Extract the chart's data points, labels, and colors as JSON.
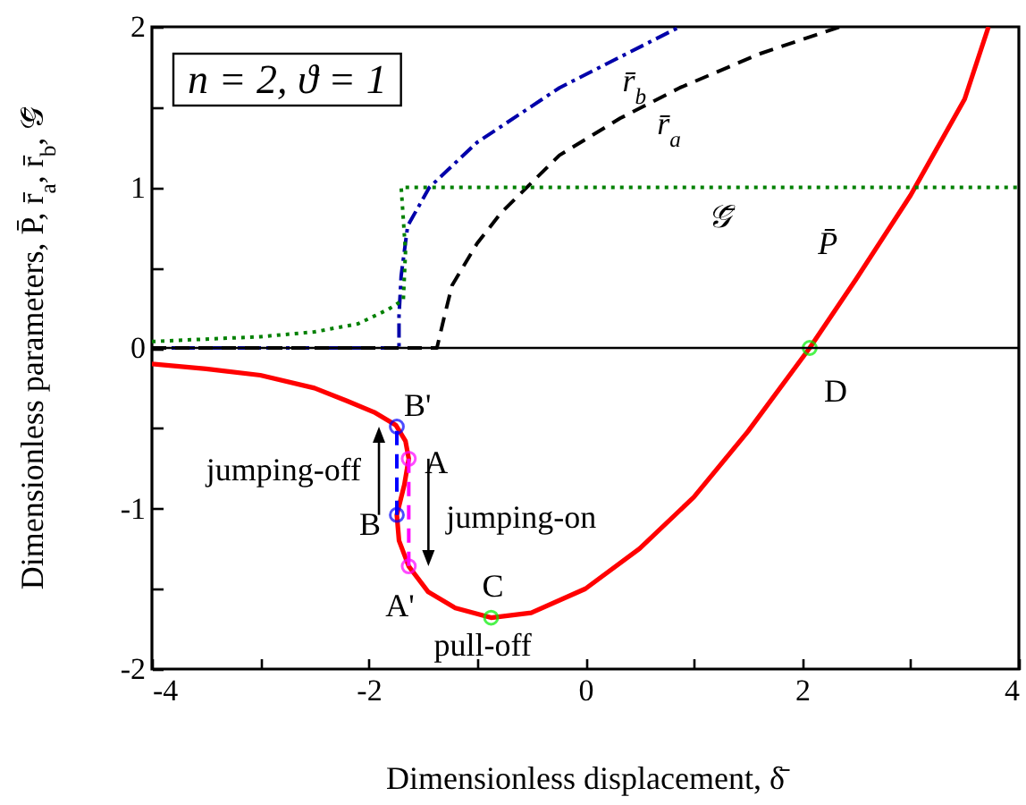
{
  "chart_data": {
    "type": "line",
    "xlabel": "Dimensionless displacement, δ̄",
    "ylabel": "Dimensionless parameters, P̄, r̄$_{a}$, r̄$_{b}$, 𝒢̄",
    "xlim": [
      -4,
      4
    ],
    "ylim": [
      -2,
      2
    ],
    "xticks": [
      -4,
      {
        "value": -3,
        "label": null
      },
      -2,
      {
        "value": -1,
        "label": null
      },
      0,
      {
        "value": 1,
        "label": null
      },
      2,
      {
        "value": 3,
        "label": null
      },
      4
    ],
    "yticks": [
      -2,
      {
        "value": -1.5,
        "label": null
      },
      -1,
      {
        "value": -0.5,
        "label": null
      },
      0,
      {
        "value": 0.5,
        "label": null
      },
      1,
      {
        "value": 1.5,
        "label": null
      },
      2
    ],
    "grid": false,
    "series": [
      {
        "name": "P̄",
        "color": "#ff0000",
        "line_style": "solid",
        "x": [
          -4,
          -3.5,
          -3,
          -2.5,
          -2.2,
          -1.95,
          -1.75,
          -1.66,
          -1.63,
          -1.67,
          -1.74,
          -1.72,
          -1.63,
          -1.45,
          -1.2,
          -0.87,
          -0.5,
          0,
          0.5,
          1,
          1.5,
          2.07,
          2.5,
          3,
          3.5,
          3.72
        ],
        "values": [
          -0.1,
          -0.13,
          -0.17,
          -0.25,
          -0.33,
          -0.4,
          -0.48,
          -0.58,
          -0.69,
          -0.85,
          -1.04,
          -1.2,
          -1.36,
          -1.52,
          -1.62,
          -1.68,
          -1.65,
          -1.5,
          -1.25,
          -0.93,
          -0.52,
          0,
          0.43,
          0.95,
          1.55,
          2
        ]
      },
      {
        "name": "r̄$_{b}$",
        "color": "#0000aa",
        "line_style": "dashdot",
        "x": [
          -4,
          -1.72,
          -1.72,
          -1.7,
          -1.64,
          -1.44,
          -1,
          -0.24,
          0.87
        ],
        "values": [
          0,
          0,
          0.2,
          0.45,
          0.76,
          1,
          1.28,
          1.62,
          2
        ]
      },
      {
        "name": "r̄$_{a}$",
        "color": "#000000",
        "line_style": "dashed",
        "x": [
          -4,
          -1.37,
          -1.3,
          -1.23,
          -1,
          -0.78,
          -0.24,
          0.32,
          0.87,
          1.6,
          2.35
        ],
        "values": [
          0,
          0,
          0.2,
          0.39,
          0.65,
          0.84,
          1.2,
          1.43,
          1.62,
          1.83,
          2
        ]
      },
      {
        "name": "𝒢̄",
        "color": "#008000",
        "line_style": "dotted",
        "x": [
          -4,
          -3,
          -2.5,
          -2.1,
          -1.82,
          -1.68,
          -1.66,
          -1.7,
          4
        ],
        "values": [
          0.04,
          0.07,
          0.1,
          0.15,
          0.24,
          0.3,
          0.6,
          1,
          1
        ]
      },
      {
        "color": "#0000ff",
        "line_style": "dashed",
        "x": [
          -1.74,
          -1.74
        ],
        "values": [
          -1.04,
          -0.49
        ]
      },
      {
        "color": "#ff00ff",
        "line_style": "dashed",
        "x": [
          -1.63,
          -1.63
        ],
        "values": [
          -0.69,
          -1.36
        ]
      },
      {
        "type": "scatter",
        "marker": "circle",
        "x": [
          -1.74,
          -1.74,
          -1.63,
          -1.63,
          -0.87,
          2.07
        ],
        "values": [
          -0.49,
          -1.04,
          -0.69,
          -1.36,
          -1.68,
          0
        ],
        "colors": [
          "#0000ff",
          "#0000ff",
          "#ff00ff",
          "#ff00ff",
          "#00ee00",
          "#00ee00"
        ]
      }
    ],
    "ref_lines": [
      {
        "axis": "y",
        "value": 0,
        "color": "#000000"
      }
    ],
    "annotations": [
      "n = 2, ϑ = 1",
      {
        "text": "B'",
        "x": -1.74,
        "y": -0.49
      },
      {
        "text": "A",
        "x": -1.63,
        "y": -0.69
      },
      {
        "text": "B",
        "x": -1.74,
        "y": -1.04
      },
      {
        "text": "A'",
        "x": -1.63,
        "y": -1.36
      },
      {
        "text": "C",
        "x": -0.87,
        "y": -1.68
      },
      {
        "text": "D",
        "x": 2.07,
        "y": 0
      },
      {
        "text": "jumping-off",
        "x": -1.74,
        "y": -0.76
      },
      {
        "text": "jumping-on",
        "x": -1.63,
        "y": -1.03
      },
      {
        "text": "pull-off",
        "x": -0.87,
        "y": -1.68
      }
    ]
  }
}
